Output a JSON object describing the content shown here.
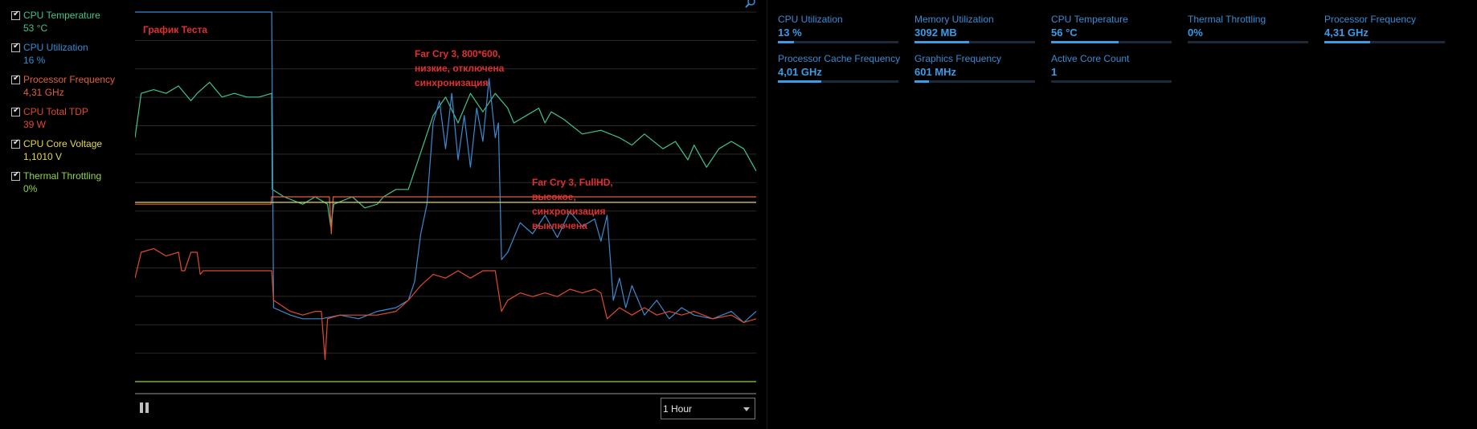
{
  "legend": [
    {
      "name": "CPU Temperature",
      "value": "53 °C",
      "color": "#3fc58a"
    },
    {
      "name": "CPU Utilization",
      "value": "16 %",
      "color": "#3a8bd2"
    },
    {
      "name": "Processor Frequency",
      "value": "4,31 GHz",
      "color": "#e0603a"
    },
    {
      "name": "CPU Total TDP",
      "value": "39 W",
      "color": "#e04a2a"
    },
    {
      "name": "CPU Core Voltage",
      "value": "1,1010 V",
      "color": "#e6d84a"
    },
    {
      "name": "Thermal Throttling",
      "value": "0%",
      "color": "#8fd44a"
    }
  ],
  "annotations": {
    "title": "График Теста",
    "test1": [
      "Far Cry 3, 800*600,",
      "низкие, отключена",
      "синхронизация"
    ],
    "test2": [
      "Far Cry 3, FullHD,",
      "высокое,",
      "синхронизация",
      "выключена"
    ]
  },
  "controls": {
    "time_range": "1 Hour"
  },
  "metrics": [
    {
      "label": "CPU Utilization",
      "value": "13 %",
      "fill": 0.13
    },
    {
      "label": "Memory Utilization",
      "value": "3092  MB",
      "fill": 0.45
    },
    {
      "label": "CPU Temperature",
      "value": "56 °C",
      "fill": 0.56
    },
    {
      "label": "Thermal Throttling",
      "value": "0%",
      "fill": 0
    },
    {
      "label": "Processor Frequency",
      "value": "4,31 GHz",
      "fill": 0.38
    },
    {
      "label": "Processor Cache Frequency",
      "value": "4,01 GHz",
      "fill": 0.36
    },
    {
      "label": "Graphics Frequency",
      "value": "601 MHz",
      "fill": 0.12
    },
    {
      "label": "Active Core Count",
      "value": "1",
      "fill": 0
    }
  ],
  "chart_data": {
    "type": "line",
    "x_range": [
      0,
      100
    ],
    "y_range": [
      0,
      100
    ],
    "grid": true,
    "series": [
      {
        "name": "CPU Temperature",
        "color": "#3fc58a",
        "values": [
          [
            0,
            66
          ],
          [
            1,
            78
          ],
          [
            3,
            79
          ],
          [
            5,
            78
          ],
          [
            7,
            80
          ],
          [
            9,
            76
          ],
          [
            10,
            78
          ],
          [
            12,
            81
          ],
          [
            14,
            77
          ],
          [
            16,
            78
          ],
          [
            18,
            77
          ],
          [
            20,
            77
          ],
          [
            22,
            78
          ],
          [
            22.1,
            52
          ],
          [
            24,
            50
          ],
          [
            27,
            48
          ],
          [
            29,
            50
          ],
          [
            31,
            48
          ],
          [
            31.5,
            42
          ],
          [
            32,
            48
          ],
          [
            35,
            50
          ],
          [
            37,
            47
          ],
          [
            39,
            48
          ],
          [
            40,
            50
          ],
          [
            42,
            52
          ],
          [
            44,
            52
          ],
          [
            46,
            62
          ],
          [
            48,
            72
          ],
          [
            50,
            77
          ],
          [
            52,
            70
          ],
          [
            54,
            78
          ],
          [
            56,
            73
          ],
          [
            58,
            78
          ],
          [
            60,
            74
          ],
          [
            61,
            70
          ],
          [
            63,
            72
          ],
          [
            65,
            74
          ],
          [
            66,
            70
          ],
          [
            67,
            73
          ],
          [
            69,
            71
          ],
          [
            72,
            67
          ],
          [
            75,
            68
          ],
          [
            78,
            66
          ],
          [
            80,
            64
          ],
          [
            82,
            67
          ],
          [
            85,
            63
          ],
          [
            87,
            65
          ],
          [
            89,
            60
          ],
          [
            90,
            64
          ],
          [
            92,
            58
          ],
          [
            94,
            63
          ],
          [
            96,
            65
          ],
          [
            98,
            63
          ],
          [
            100,
            57
          ]
        ]
      },
      {
        "name": "CPU Utilization",
        "color": "#3a8bd2",
        "values": [
          [
            0,
            100
          ],
          [
            22,
            100
          ],
          [
            22.3,
            20
          ],
          [
            25,
            18
          ],
          [
            27,
            17
          ],
          [
            30,
            17
          ],
          [
            33,
            18
          ],
          [
            36,
            17
          ],
          [
            39,
            19
          ],
          [
            42,
            20
          ],
          [
            44,
            22
          ],
          [
            45,
            27
          ],
          [
            46,
            40
          ],
          [
            47,
            48
          ],
          [
            48,
            70
          ],
          [
            49,
            76
          ],
          [
            50,
            63
          ],
          [
            51,
            78
          ],
          [
            52,
            60
          ],
          [
            53,
            72
          ],
          [
            54,
            58
          ],
          [
            55,
            74
          ],
          [
            56,
            65
          ],
          [
            57,
            82
          ],
          [
            58,
            66
          ],
          [
            58.5,
            70
          ],
          [
            59,
            33
          ],
          [
            60,
            35
          ],
          [
            62,
            43
          ],
          [
            64,
            40
          ],
          [
            66,
            45
          ],
          [
            68,
            39
          ],
          [
            70,
            46
          ],
          [
            72,
            42
          ],
          [
            74,
            44
          ],
          [
            75,
            38
          ],
          [
            76,
            45
          ],
          [
            77,
            22
          ],
          [
            78,
            28
          ],
          [
            79,
            20
          ],
          [
            80,
            26
          ],
          [
            82,
            18
          ],
          [
            84,
            22
          ],
          [
            86,
            17
          ],
          [
            88,
            20
          ],
          [
            90,
            18
          ],
          [
            93,
            17
          ],
          [
            96,
            19
          ],
          [
            98,
            16
          ],
          [
            100,
            19
          ]
        ]
      },
      {
        "name": "Processor Frequency",
        "color": "#e0603a",
        "values": [
          [
            0,
            48
          ],
          [
            21.9,
            48
          ],
          [
            22,
            50
          ],
          [
            31.3,
            50
          ],
          [
            31.6,
            40
          ],
          [
            31.9,
            50
          ],
          [
            60,
            50
          ],
          [
            70,
            50
          ],
          [
            80,
            50
          ],
          [
            90,
            50
          ],
          [
            100,
            50
          ]
        ]
      },
      {
        "name": "CPU Total TDP",
        "color": "#e04a2a",
        "values": [
          [
            0,
            28
          ],
          [
            1,
            35
          ],
          [
            3,
            36
          ],
          [
            5,
            34
          ],
          [
            7,
            35
          ],
          [
            7.5,
            30
          ],
          [
            8,
            30
          ],
          [
            9,
            35
          ],
          [
            10,
            35
          ],
          [
            10.5,
            29
          ],
          [
            11,
            30
          ],
          [
            20,
            30
          ],
          [
            22,
            30
          ],
          [
            22.3,
            22
          ],
          [
            25,
            19
          ],
          [
            27,
            18
          ],
          [
            29,
            19
          ],
          [
            30,
            19
          ],
          [
            30.6,
            6
          ],
          [
            31,
            17
          ],
          [
            33,
            18
          ],
          [
            36,
            18
          ],
          [
            39,
            18
          ],
          [
            42,
            19
          ],
          [
            44,
            22
          ],
          [
            46,
            26
          ],
          [
            48,
            29
          ],
          [
            50,
            28
          ],
          [
            52,
            30
          ],
          [
            54,
            28
          ],
          [
            56,
            30
          ],
          [
            58,
            30
          ],
          [
            59,
            19
          ],
          [
            60,
            22
          ],
          [
            62,
            24
          ],
          [
            64,
            23
          ],
          [
            66,
            24
          ],
          [
            68,
            23
          ],
          [
            70,
            25
          ],
          [
            72,
            24
          ],
          [
            74,
            25
          ],
          [
            75,
            24
          ],
          [
            76,
            17
          ],
          [
            78,
            20
          ],
          [
            80,
            18
          ],
          [
            82,
            20
          ],
          [
            84,
            18
          ],
          [
            86,
            19
          ],
          [
            88,
            18
          ],
          [
            90,
            19
          ],
          [
            93,
            17
          ],
          [
            96,
            18
          ],
          [
            98,
            16
          ],
          [
            100,
            17
          ]
        ]
      },
      {
        "name": "CPU Core Voltage",
        "color": "#e6d84a",
        "values": [
          [
            0,
            48.5
          ],
          [
            100,
            48.5
          ]
        ]
      },
      {
        "name": "Thermal Throttling",
        "color": "#8fd44a",
        "values": [
          [
            0,
            0
          ],
          [
            100,
            0
          ]
        ]
      }
    ]
  }
}
